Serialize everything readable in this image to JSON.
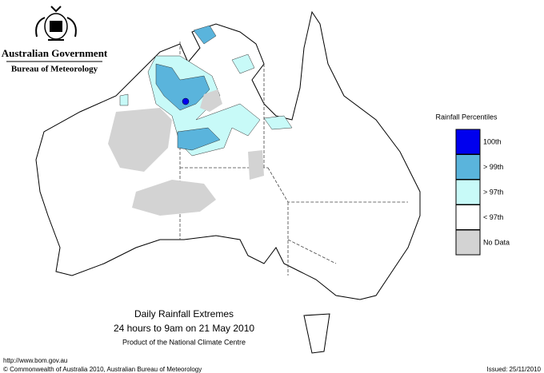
{
  "header": {
    "government": "Australian Government",
    "agency": "Bureau of Meteorology"
  },
  "legend": {
    "title": "Rainfall Percentiles",
    "items": [
      {
        "label": "100th",
        "color": "#0000ee"
      },
      {
        "label": "> 99th",
        "color": "#5ab4dc"
      },
      {
        "label": "> 97th",
        "color": "#c8faf8"
      },
      {
        "label": "< 97th",
        "color": "#ffffff"
      },
      {
        "label": "No Data",
        "color": "#d3d3d3"
      }
    ]
  },
  "caption": {
    "title": "Daily Rainfall Extremes",
    "period": "24 hours to 9am on 21 May 2010",
    "credit": "Product of the National Climate Centre"
  },
  "footer": {
    "url": "http://www.bom.gov.au",
    "copyright": "© Commonwealth of Australia 2010, Australian Bureau of Meteorology",
    "issued": "Issued: 25/11/2010"
  }
}
